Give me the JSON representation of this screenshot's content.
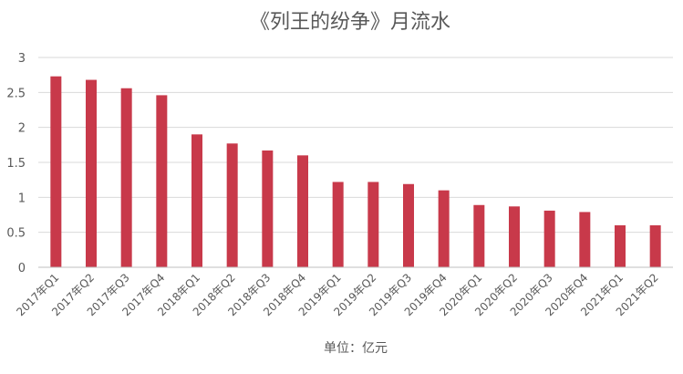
{
  "chart_data": {
    "type": "bar",
    "title": "《列王的纷争》月流水",
    "xlabel": "单位：亿元",
    "ylabel": "",
    "ylim": [
      0,
      3
    ],
    "yticks": [
      "0",
      "0.5",
      "1",
      "1.5",
      "2",
      "2.5",
      "3"
    ],
    "grid": true,
    "legend": "none",
    "bar_color": "#c8394a",
    "categories": [
      "2017年Q1",
      "2017年Q2",
      "2017年Q3",
      "2017年Q4",
      "2018年Q1",
      "2018年Q2",
      "2018年Q3",
      "2018年Q4",
      "2019年Q1",
      "2019年Q2",
      "2019年Q3",
      "2019年Q4",
      "2020年Q1",
      "2020年Q2",
      "2020年Q3",
      "2020年Q4",
      "2021年Q1",
      "2021年Q2"
    ],
    "values": [
      2.73,
      2.68,
      2.56,
      2.46,
      1.9,
      1.77,
      1.67,
      1.6,
      1.22,
      1.22,
      1.19,
      1.1,
      0.89,
      0.87,
      0.81,
      0.79,
      0.6,
      0.6
    ]
  }
}
